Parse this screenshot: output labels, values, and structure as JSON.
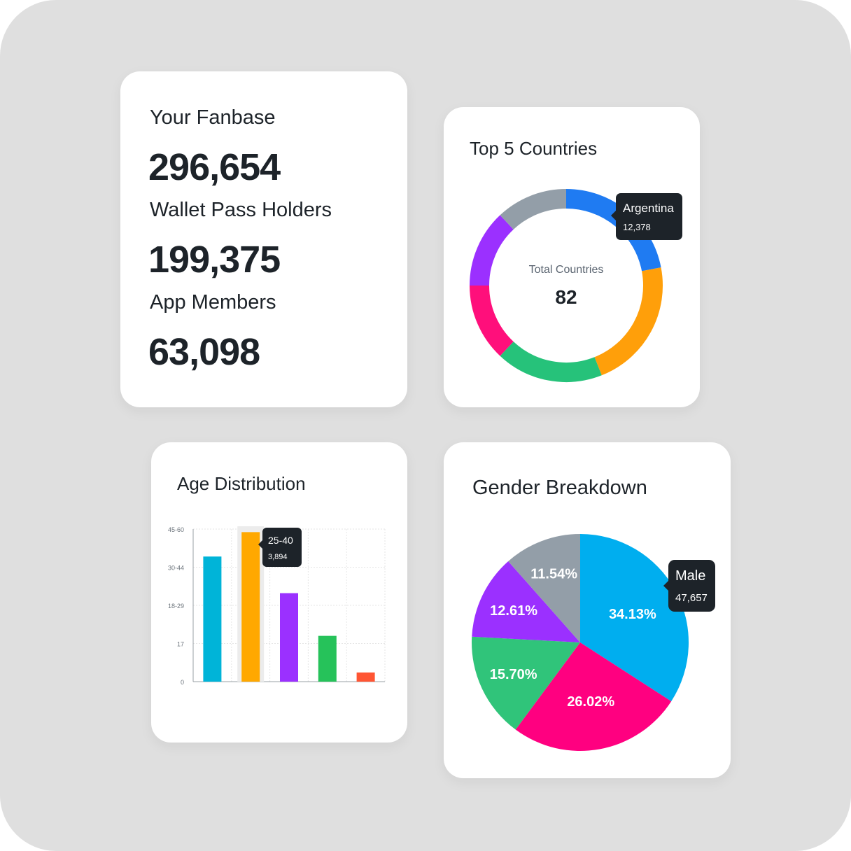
{
  "fanbase": {
    "title": "Your Fanbase",
    "total": "296,654",
    "wallet_label": "Wallet Pass Holders",
    "wallet_value": "199,375",
    "app_label": "App Members",
    "app_value": "63,098"
  },
  "countries": {
    "title": "Top 5 Countries",
    "center_label": "Total Countries",
    "center_value": "82",
    "tooltip": {
      "label": "Argentina",
      "value": "12,378"
    }
  },
  "age": {
    "title": "Age Distribution",
    "tooltip": {
      "label": "25-40",
      "value": "3,894"
    }
  },
  "gender": {
    "title": "Gender Breakdown",
    "tooltip": {
      "label": "Male",
      "value": "47,657"
    }
  },
  "chart_data": [
    {
      "type": "pie",
      "title": "Top 5 Countries",
      "donut": true,
      "slices": [
        {
          "value": 22,
          "color": "#1f7bf2"
        },
        {
          "value": 22,
          "color": "#ff9f0a"
        },
        {
          "value": 18,
          "color": "#26c27a"
        },
        {
          "value": 13,
          "color": "#ff0f7b"
        },
        {
          "value": 13,
          "color": "#9b30ff"
        },
        {
          "value": 12,
          "color": "#939ea8"
        }
      ]
    },
    {
      "type": "bar",
      "title": "Age Distribution",
      "y_tick_labels": [
        "0",
        "17",
        "18-29",
        "30-44",
        "45-60"
      ],
      "values": [
        0.82,
        0.98,
        0.58,
        0.3,
        0.06
      ],
      "colors": [
        "#00b4d8",
        "#ffa800",
        "#9b30ff",
        "#26c25a",
        "#ff5533"
      ],
      "highlight_index": 1,
      "ylim": [
        0,
        1
      ]
    },
    {
      "type": "pie",
      "title": "Gender Breakdown",
      "slices": [
        {
          "label": "34.13%",
          "value": 34.13,
          "color": "#00aeef"
        },
        {
          "label": "26.02%",
          "value": 26.02,
          "color": "#ff0080"
        },
        {
          "label": "15.70%",
          "value": 15.7,
          "color": "#30c47a"
        },
        {
          "label": "12.61%",
          "value": 12.61,
          "color": "#9b30ff"
        },
        {
          "label": "11.54%",
          "value": 11.54,
          "color": "#939ea8"
        }
      ]
    }
  ]
}
